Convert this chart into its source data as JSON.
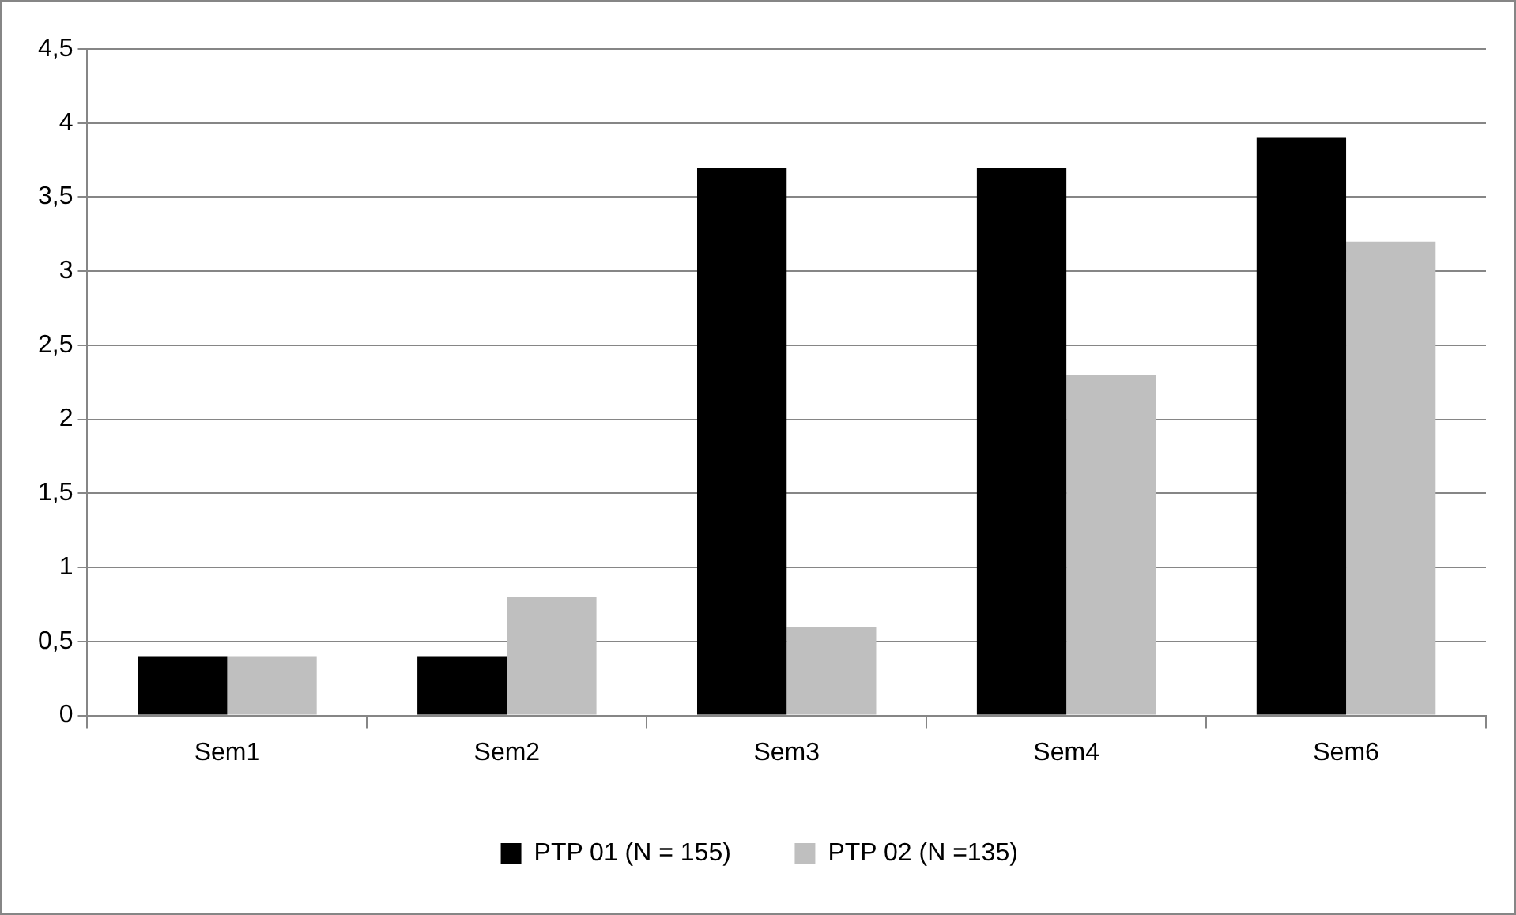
{
  "chart_data": {
    "type": "bar",
    "categories": [
      "Sem1",
      "Sem2",
      "Sem3",
      "Sem4",
      "Sem6"
    ],
    "series": [
      {
        "name": "PTP 01 (N = 155)",
        "color": "#000000",
        "values": [
          0.4,
          0.4,
          3.7,
          3.7,
          3.9
        ]
      },
      {
        "name": "PTP 02 (N =135)",
        "color": "#bfbfbf",
        "values": [
          0.4,
          0.8,
          0.6,
          2.3,
          3.2
        ]
      }
    ],
    "ylim": [
      0,
      4.5
    ],
    "yticks": [
      0,
      {
        "value": 0.5,
        "label": "0,5"
      },
      1,
      {
        "value": 1.5,
        "label": "1,5"
      },
      2,
      {
        "value": 2.5,
        "label": "2,5"
      },
      3,
      {
        "value": 3.5,
        "label": "3,5"
      },
      4,
      {
        "value": 4.5,
        "label": "4,5"
      }
    ],
    "grid": "y",
    "legend": "bottom"
  }
}
